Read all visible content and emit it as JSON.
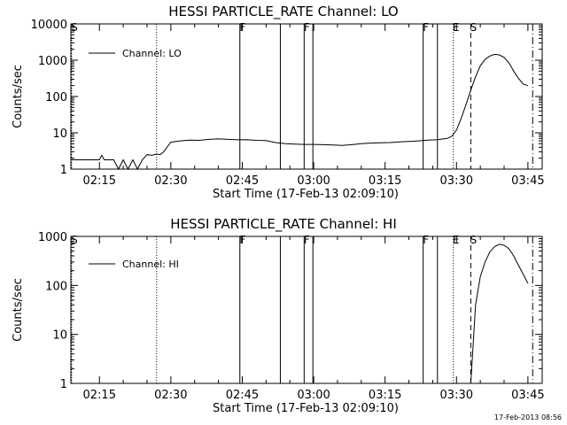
{
  "footer": {
    "timestamp": "17-Feb-2013 08:56"
  },
  "chart_data": [
    {
      "type": "line",
      "title": "HESSI PARTICLE_RATE Channel: LO",
      "xlabel": "Start Time (17-Feb-13 02:09:10)",
      "ylabel": "Counts/sec",
      "yscale": "log",
      "xlim": [
        2.15,
        3.8
      ],
      "ylim": [
        1,
        10000
      ],
      "x_ticks": [
        "02:15",
        "02:30",
        "02:45",
        "03:00",
        "03:15",
        "03:30",
        "03:45"
      ],
      "y_ticks": [
        "1",
        "10",
        "100",
        "1000",
        "10000"
      ],
      "legend": {
        "placement": "top-left",
        "entries": [
          "Channel: LO"
        ]
      },
      "series": [
        {
          "name": "Channel: LO",
          "x": [
            "02:09:10",
            "02:13:00",
            "02:15:00",
            "02:15:30",
            "02:16:00",
            "02:18:00",
            "02:19:00",
            "02:20:00",
            "02:21:00",
            "02:22:00",
            "02:23:00",
            "02:24:00",
            "02:25:00",
            "02:26:00",
            "02:27:00",
            "02:27:45",
            "02:28:30",
            "02:30:00",
            "02:32:00",
            "02:34:00",
            "02:36:00",
            "02:38:00",
            "02:40:00",
            "02:42:00",
            "02:44:00",
            "02:46:00",
            "02:48:00",
            "02:50:00",
            "02:52:00",
            "02:54:00",
            "02:56:00",
            "02:58:00",
            "03:00:00",
            "03:02:00",
            "03:04:00",
            "03:06:00",
            "03:08:00",
            "03:10:00",
            "03:12:00",
            "03:14:00",
            "03:16:00",
            "03:18:00",
            "03:20:00",
            "03:22:00",
            "03:24:00",
            "03:26:00",
            "03:28:00",
            "03:29:00",
            "03:30:00",
            "03:31:00",
            "03:32:00",
            "03:33:00",
            "03:34:00",
            "03:35:00",
            "03:36:00",
            "03:37:00",
            "03:38:00",
            "03:39:00",
            "03:40:00",
            "03:41:00",
            "03:42:00",
            "03:43:00",
            "03:44:00",
            "03:45:00"
          ],
          "y": [
            1.8,
            1.8,
            1.8,
            2.4,
            1.8,
            1.8,
            1.0,
            1.8,
            1.0,
            1.8,
            1.0,
            1.8,
            2.5,
            2.4,
            2.6,
            2.5,
            3.0,
            5.5,
            6.0,
            6.3,
            6.2,
            6.6,
            6.8,
            6.6,
            6.4,
            6.5,
            6.2,
            6.1,
            5.4,
            5.0,
            4.9,
            4.8,
            4.8,
            4.7,
            4.6,
            4.5,
            4.7,
            5.0,
            5.2,
            5.3,
            5.4,
            5.6,
            5.8,
            6.0,
            6.3,
            6.5,
            7.0,
            8.0,
            12,
            25,
            60,
            150,
            350,
            700,
            1050,
            1300,
            1450,
            1400,
            1200,
            850,
            500,
            320,
            220,
            200
          ]
        }
      ],
      "vertical_markers": [
        {
          "label": "S",
          "x": "02:09:10",
          "style": "dotted"
        },
        {
          "label": "",
          "x": "02:27:00",
          "style": "dotted"
        },
        {
          "label": "F",
          "x": "02:44:30",
          "style": "solid"
        },
        {
          "label": "",
          "x": "02:53:00",
          "style": "solid"
        },
        {
          "label": "F",
          "x": "02:58:00",
          "style": "solid"
        },
        {
          "label": "",
          "x": "02:59:50",
          "style": "solid"
        },
        {
          "label": "F",
          "x": "03:23:00",
          "style": "solid"
        },
        {
          "label": "",
          "x": "03:26:00",
          "style": "solid"
        },
        {
          "label": "E",
          "x": "03:29:20",
          "style": "dotted"
        },
        {
          "label": "S",
          "x": "03:33:00",
          "style": "dashed"
        },
        {
          "label": "",
          "x": "03:46:00",
          "style": "dashdot"
        }
      ]
    },
    {
      "type": "line",
      "title": "HESSI PARTICLE_RATE Channel: HI",
      "xlabel": "Start Time (17-Feb-13 02:09:10)",
      "ylabel": "Counts/sec",
      "yscale": "log",
      "xlim": [
        2.15,
        3.8
      ],
      "ylim": [
        1,
        1000
      ],
      "x_ticks": [
        "02:15",
        "02:30",
        "02:45",
        "03:00",
        "03:15",
        "03:30",
        "03:45"
      ],
      "y_ticks": [
        "1",
        "10",
        "100",
        "1000"
      ],
      "legend": {
        "placement": "top-left",
        "entries": [
          "Channel: HI"
        ]
      },
      "series": [
        {
          "name": "Channel: HI",
          "x": [
            "03:33:00",
            "03:34:00",
            "03:35:00",
            "03:36:00",
            "03:37:00",
            "03:38:00",
            "03:39:00",
            "03:40:00",
            "03:41:00",
            "03:42:00",
            "03:43:00",
            "03:44:00",
            "03:45:00"
          ],
          "y": [
            1,
            40,
            150,
            300,
            480,
            620,
            690,
            660,
            560,
            400,
            260,
            170,
            110
          ]
        }
      ],
      "vertical_markers": [
        {
          "label": "S",
          "x": "02:09:10",
          "style": "dotted"
        },
        {
          "label": "",
          "x": "02:27:00",
          "style": "dotted"
        },
        {
          "label": "F",
          "x": "02:44:30",
          "style": "solid"
        },
        {
          "label": "",
          "x": "02:53:00",
          "style": "solid"
        },
        {
          "label": "F",
          "x": "02:58:00",
          "style": "solid"
        },
        {
          "label": "",
          "x": "02:59:50",
          "style": "solid"
        },
        {
          "label": "F",
          "x": "03:23:00",
          "style": "solid"
        },
        {
          "label": "",
          "x": "03:26:00",
          "style": "solid"
        },
        {
          "label": "E",
          "x": "03:29:20",
          "style": "dotted"
        },
        {
          "label": "S",
          "x": "03:33:00",
          "style": "dashed"
        },
        {
          "label": "",
          "x": "03:46:00",
          "style": "dashdot"
        }
      ]
    }
  ]
}
